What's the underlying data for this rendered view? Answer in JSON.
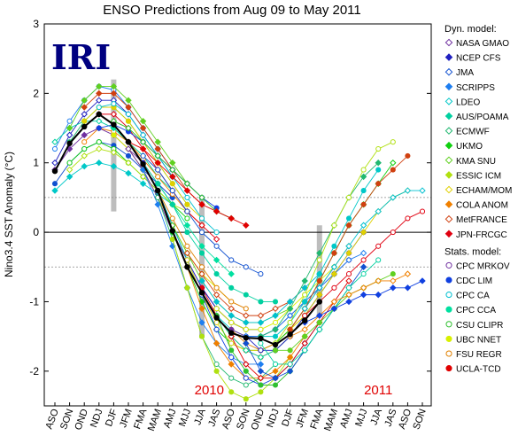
{
  "chart_data": {
    "type": "line",
    "title": "ENSO Predictions from Aug 09 to May 2011",
    "ylabel": "Nino3.4 SST Anomaly (°C)",
    "xlabel": "",
    "ylim": [
      -2.5,
      3
    ],
    "yticks": [
      -2,
      -1,
      0,
      1,
      2,
      3
    ],
    "grid": "dotted reference lines at +0.5 and -0.5",
    "categories": [
      "ASO",
      "SON",
      "OND",
      "NDJ",
      "DJF",
      "JFM",
      "FMA",
      "MAM",
      "AMJ",
      "MJJ",
      "JJA",
      "JAS",
      "ASO",
      "SON",
      "OND",
      "NDJ",
      "DJF",
      "JFM",
      "FMA",
      "MAM",
      "AMJ",
      "MJJ",
      "JJA",
      "JAS",
      "ASO",
      "SON"
    ],
    "year_labels": [
      {
        "text": "2010",
        "at": 10.5
      },
      {
        "text": "2011",
        "at": 22.0
      }
    ],
    "observed": {
      "name": "",
      "color": "#000000",
      "start": 0,
      "values": [
        0.88,
        1.28,
        1.52,
        1.7,
        1.55,
        1.3,
        0.98,
        0.6,
        0.02,
        -0.5,
        -0.87,
        -1.23,
        -1.45,
        -1.52,
        -1.53,
        -1.62,
        -1.47,
        -1.27,
        -1.0
      ]
    },
    "legend_position": "right",
    "legend_groups": [
      {
        "title": "Dyn. model:",
        "entries": [
          {
            "name": "NASA GMAO",
            "color": "#7030a0",
            "marker": "diamond-open"
          },
          {
            "name": "NCEP CFS",
            "color": "#2020c0",
            "marker": "diamond"
          },
          {
            "name": "JMA",
            "color": "#1050d0",
            "marker": "diamond-open"
          },
          {
            "name": "SCRIPPS",
            "color": "#1e7ef0",
            "marker": "diamond"
          },
          {
            "name": "LDEO",
            "color": "#00c8c8",
            "marker": "diamond-open"
          },
          {
            "name": "AUS/POAMA",
            "color": "#00d0a0",
            "marker": "diamond"
          },
          {
            "name": "ECMWF",
            "color": "#20b870",
            "marker": "diamond-open"
          },
          {
            "name": "UKMO",
            "color": "#10d010",
            "marker": "diamond"
          },
          {
            "name": "KMA SNU",
            "color": "#60d020",
            "marker": "diamond-open"
          },
          {
            "name": "ESSIC ICM",
            "color": "#b0e010",
            "marker": "diamond"
          },
          {
            "name": "ECHAM/MOM",
            "color": "#e0d000",
            "marker": "diamond-open"
          },
          {
            "name": "COLA ANOM",
            "color": "#f08000",
            "marker": "diamond"
          },
          {
            "name": "MetFRANCE",
            "color": "#d04010",
            "marker": "diamond-open"
          },
          {
            "name": "JPN-FRCGC",
            "color": "#e00010",
            "marker": "diamond"
          }
        ]
      },
      {
        "title": "Stats. model:",
        "entries": [
          {
            "name": "CPC MRKOV",
            "color": "#7030a0",
            "marker": "circle-open"
          },
          {
            "name": "CDC LIM",
            "color": "#1040e0",
            "marker": "circle"
          },
          {
            "name": "CPC CA",
            "color": "#00c0d0",
            "marker": "circle-open"
          },
          {
            "name": "CPC CCA",
            "color": "#00e0a0",
            "marker": "circle"
          },
          {
            "name": "CSU CLIPR",
            "color": "#30c030",
            "marker": "circle-open"
          },
          {
            "name": "UBC NNET",
            "color": "#d8f000",
            "marker": "circle"
          },
          {
            "name": "FSU REGR",
            "color": "#e08000",
            "marker": "circle-open"
          },
          {
            "name": "UCLA-TCD",
            "color": "#e00000",
            "marker": "circle"
          }
        ]
      }
    ],
    "forecast_runs": [
      {
        "start": 0,
        "values": [
          0.9,
          1.2,
          1.4,
          1.5,
          1.4,
          1.2,
          1.0,
          0.7,
          0.5
        ]
      },
      {
        "start": 0,
        "values": [
          1.0,
          1.4,
          1.7,
          1.9,
          1.9,
          1.7,
          1.4,
          1.1,
          0.8
        ]
      },
      {
        "start": 0,
        "values": [
          0.7,
          1.0,
          1.2,
          1.3,
          1.25,
          1.1,
          0.9,
          0.7,
          0.5
        ]
      },
      {
        "start": 0,
        "values": [
          1.2,
          1.6,
          1.9,
          2.1,
          2.05,
          1.8,
          1.5,
          1.2,
          0.9
        ]
      },
      {
        "start": 0,
        "values": [
          0.6,
          0.8,
          0.95,
          1.0,
          0.95,
          0.85,
          0.7,
          0.55,
          0.4
        ]
      },
      {
        "start": 0,
        "values": [
          1.3,
          1.5,
          1.6,
          1.6,
          1.5,
          1.3,
          1.1,
          0.8,
          0.6
        ]
      },
      {
        "start": 1,
        "values": [
          1.3,
          1.6,
          1.8,
          1.8,
          1.6,
          1.3,
          1.0,
          0.7,
          0.4
        ]
      },
      {
        "start": 1,
        "values": [
          1.0,
          1.2,
          1.3,
          1.2,
          1.0,
          0.8,
          0.6,
          0.4,
          0.2
        ]
      },
      {
        "start": 1,
        "values": [
          1.5,
          1.9,
          2.1,
          2.1,
          1.9,
          1.6,
          1.3,
          1.0,
          0.7
        ]
      },
      {
        "start": 1,
        "values": [
          0.9,
          1.1,
          1.2,
          1.15,
          1.0,
          0.8,
          0.6,
          0.4,
          0.3
        ]
      },
      {
        "start": 2,
        "values": [
          1.6,
          1.8,
          1.8,
          1.6,
          1.3,
          1.0,
          0.7,
          0.4,
          0.2
        ]
      },
      {
        "start": 2,
        "values": [
          1.3,
          1.5,
          1.45,
          1.3,
          1.05,
          0.8,
          0.55,
          0.3,
          0.1
        ]
      },
      {
        "start": 2,
        "values": [
          1.8,
          2.0,
          2.0,
          1.8,
          1.5,
          1.2,
          0.9,
          0.6,
          0.4
        ]
      },
      {
        "start": 3,
        "values": [
          1.7,
          1.7,
          1.5,
          1.2,
          0.9,
          0.6,
          0.3,
          0.1,
          -0.1
        ]
      },
      {
        "start": 3,
        "values": [
          1.5,
          1.55,
          1.45,
          1.3,
          1.1,
          0.9,
          0.7,
          0.5,
          0.35
        ]
      },
      {
        "start": 3,
        "values": [
          1.8,
          1.85,
          1.7,
          1.4,
          1.1,
          0.8,
          0.5,
          0.2,
          0.0
        ]
      },
      {
        "start": 4,
        "values": [
          1.5,
          1.3,
          1.0,
          0.7,
          0.4,
          0.1,
          -0.2,
          -0.4,
          -0.6
        ]
      },
      {
        "start": 4,
        "values": [
          1.6,
          1.5,
          1.3,
          1.1,
          0.9,
          0.7,
          0.5,
          0.3,
          0.2
        ]
      },
      {
        "start": 4,
        "values": [
          1.4,
          1.2,
          0.9,
          0.5,
          0.1,
          -0.3,
          -0.6,
          -0.8,
          -1.0
        ]
      },
      {
        "start": 5,
        "values": [
          1.3,
          1.0,
          0.6,
          0.2,
          -0.2,
          -0.5,
          -0.8,
          -1.0,
          -1.1
        ]
      },
      {
        "start": 5,
        "values": [
          1.3,
          1.2,
          1.0,
          0.8,
          0.6,
          0.4,
          0.3,
          0.2,
          0.1
        ]
      },
      {
        "start": 5,
        "values": [
          1.2,
          0.9,
          0.5,
          0.0,
          -0.4,
          -0.8,
          -1.1,
          -1.3,
          -1.4
        ]
      },
      {
        "start": 6,
        "values": [
          1.0,
          0.6,
          0.1,
          -0.4,
          -0.8,
          -1.1,
          -1.3,
          -1.4,
          -1.4
        ]
      },
      {
        "start": 6,
        "values": [
          1.1,
          0.9,
          0.6,
          0.3,
          0.0,
          -0.2,
          -0.4,
          -0.5,
          -0.6
        ]
      },
      {
        "start": 6,
        "values": [
          0.9,
          0.4,
          -0.2,
          -0.8,
          -1.3,
          -1.6,
          -1.8,
          -1.9,
          -1.9
        ]
      },
      {
        "start": 7,
        "values": [
          0.6,
          0.1,
          -0.4,
          -0.9,
          -1.2,
          -1.4,
          -1.5,
          -1.5,
          -1.4
        ]
      },
      {
        "start": 7,
        "values": [
          0.7,
          0.4,
          0.0,
          -0.3,
          -0.6,
          -0.8,
          -0.9,
          -1.0,
          -1.0
        ]
      },
      {
        "start": 7,
        "values": [
          0.5,
          -0.1,
          -0.8,
          -1.5,
          -1.9,
          -2.1,
          -2.2,
          -2.1,
          -1.9
        ]
      },
      {
        "start": 8,
        "values": [
          0.0,
          -0.5,
          -1.0,
          -1.4,
          -1.6,
          -1.7,
          -1.7,
          -1.6,
          -1.4
        ]
      },
      {
        "start": 8,
        "values": [
          0.1,
          -0.3,
          -0.7,
          -1.0,
          -1.2,
          -1.3,
          -1.3,
          -1.2,
          -1.1
        ]
      },
      {
        "start": 8,
        "values": [
          -0.1,
          -0.8,
          -1.5,
          -2.0,
          -2.3,
          -2.4,
          -2.3,
          -2.1,
          -1.8
        ]
      },
      {
        "start": 9,
        "values": [
          -0.4,
          -0.9,
          -1.3,
          -1.6,
          -1.7,
          -1.7,
          -1.6,
          -1.4,
          -1.2
        ]
      },
      {
        "start": 9,
        "values": [
          -0.5,
          -1.1,
          -1.6,
          -1.9,
          -2.1,
          -2.1,
          -2.0,
          -1.8,
          -1.5
        ]
      },
      {
        "start": 9,
        "values": [
          -0.3,
          -0.6,
          -0.9,
          -1.1,
          -1.2,
          -1.2,
          -1.1,
          -1.0,
          -0.8
        ]
      },
      {
        "start": 10,
        "values": [
          -0.8,
          -1.2,
          -1.5,
          -1.7,
          -1.8,
          -1.7,
          -1.5,
          -1.2,
          -0.9
        ]
      },
      {
        "start": 10,
        "values": [
          -0.9,
          -1.4,
          -1.8,
          -2.1,
          -2.2,
          -2.1,
          -1.9,
          -1.6,
          -1.3
        ]
      },
      {
        "start": 10,
        "values": [
          -0.7,
          -1.0,
          -1.2,
          -1.3,
          -1.3,
          -1.2,
          -1.0,
          -0.8,
          -0.6
        ]
      },
      {
        "start": 11,
        "values": [
          -1.2,
          -1.5,
          -1.7,
          -1.8,
          -1.7,
          -1.5,
          -1.2,
          -0.9,
          -0.6
        ]
      },
      {
        "start": 11,
        "values": [
          -1.2,
          -1.7,
          -2.0,
          -2.2,
          -2.2,
          -2.0,
          -1.7,
          -1.4,
          -1.1
        ]
      },
      {
        "start": 11,
        "values": [
          -1.1,
          -1.3,
          -1.4,
          -1.4,
          -1.3,
          -1.1,
          -0.9,
          -0.7,
          -0.5
        ]
      },
      {
        "start": 12,
        "values": [
          -1.4,
          -1.6,
          -1.7,
          -1.6,
          -1.4,
          -1.1,
          -0.8,
          -0.5,
          -0.2
        ]
      },
      {
        "start": 12,
        "values": [
          -1.5,
          -1.9,
          -2.1,
          -2.1,
          -1.9,
          -1.6,
          -1.3,
          -1.0,
          -0.7
        ]
      },
      {
        "start": 12,
        "values": [
          -1.4,
          -1.5,
          -1.5,
          -1.4,
          -1.2,
          -1.0,
          -0.8,
          -0.6,
          -0.4
        ]
      },
      {
        "start": 13,
        "values": [
          -1.5,
          -1.7,
          -1.7,
          -1.5,
          -1.2,
          -0.9,
          -0.6,
          -0.3,
          0.0
        ]
      },
      {
        "start": 13,
        "values": [
          -1.6,
          -2.0,
          -2.1,
          -2.0,
          -1.7,
          -1.4,
          -1.1,
          -0.8,
          -0.5
        ]
      },
      {
        "start": 13,
        "values": [
          -1.5,
          -1.5,
          -1.4,
          -1.2,
          -1.0,
          -0.8,
          -0.6,
          -0.4,
          -0.3
        ]
      },
      {
        "start": 14,
        "values": [
          -1.5,
          -1.5,
          -1.3,
          -1.0,
          -0.6,
          -0.2,
          0.2,
          0.6,
          0.9
        ]
      },
      {
        "start": 14,
        "values": [
          -1.6,
          -1.9,
          -1.9,
          -1.7,
          -1.4,
          -1.1,
          -0.8,
          -0.6,
          -0.4
        ]
      },
      {
        "start": 14,
        "values": [
          -1.5,
          -1.4,
          -1.1,
          -0.7,
          -0.3,
          0.1,
          0.5,
          0.8,
          1.0
        ]
      },
      {
        "start": 15,
        "values": [
          -1.6,
          -1.4,
          -1.1,
          -0.7,
          -0.3,
          0.1,
          0.4,
          0.7,
          1.0
        ]
      },
      {
        "start": 15,
        "values": [
          -1.7,
          -1.7,
          -1.5,
          -1.3,
          -1.1,
          -0.9,
          -0.8,
          -0.7,
          -0.6
        ]
      },
      {
        "start": 15,
        "values": [
          -1.6,
          -1.3,
          -0.9,
          -0.4,
          0.1,
          0.5,
          0.9,
          1.2,
          1.3
        ]
      },
      {
        "start": 16,
        "values": [
          -1.4,
          -1.2,
          -0.9,
          -0.6,
          -0.3,
          0.0,
          0.3,
          0.5,
          0.6
        ]
      },
      {
        "start": 16,
        "values": [
          -1.5,
          -1.4,
          -1.2,
          -1.0,
          -0.9,
          -0.8,
          -0.7,
          -0.7,
          -0.6
        ]
      },
      {
        "start": 16,
        "values": [
          -1.4,
          -1.1,
          -0.7,
          -0.3,
          0.1,
          0.4,
          0.7,
          0.9,
          1.1
        ]
      },
      {
        "start": 17,
        "values": [
          -1.2,
          -1.0,
          -0.8,
          -0.6,
          -0.4,
          -0.2,
          0.0,
          0.2,
          0.3
        ]
      },
      {
        "start": 17,
        "values": [
          -1.3,
          -1.2,
          -1.1,
          -1.0,
          -0.9,
          -0.9,
          -0.8,
          -0.8,
          -0.7
        ]
      },
      {
        "start": 17,
        "values": [
          -1.1,
          -0.8,
          -0.5,
          -0.2,
          0.1,
          0.3,
          0.5,
          0.6,
          0.6
        ]
      }
    ],
    "forecast_colors": [
      "#7030a0",
      "#2020c0",
      "#1050d0",
      "#1e7ef0",
      "#00c8c8",
      "#00d0a0",
      "#20b870",
      "#10d010",
      "#60d020",
      "#b0e010",
      "#e0d000",
      "#f08000",
      "#d04010",
      "#e00010",
      "#1040e0",
      "#00c0d0",
      "#00e0a0",
      "#30c030",
      "#d8f000",
      "#e08000",
      "#e00000"
    ]
  },
  "logo": {
    "text": "IRI",
    "color": "#000080"
  }
}
